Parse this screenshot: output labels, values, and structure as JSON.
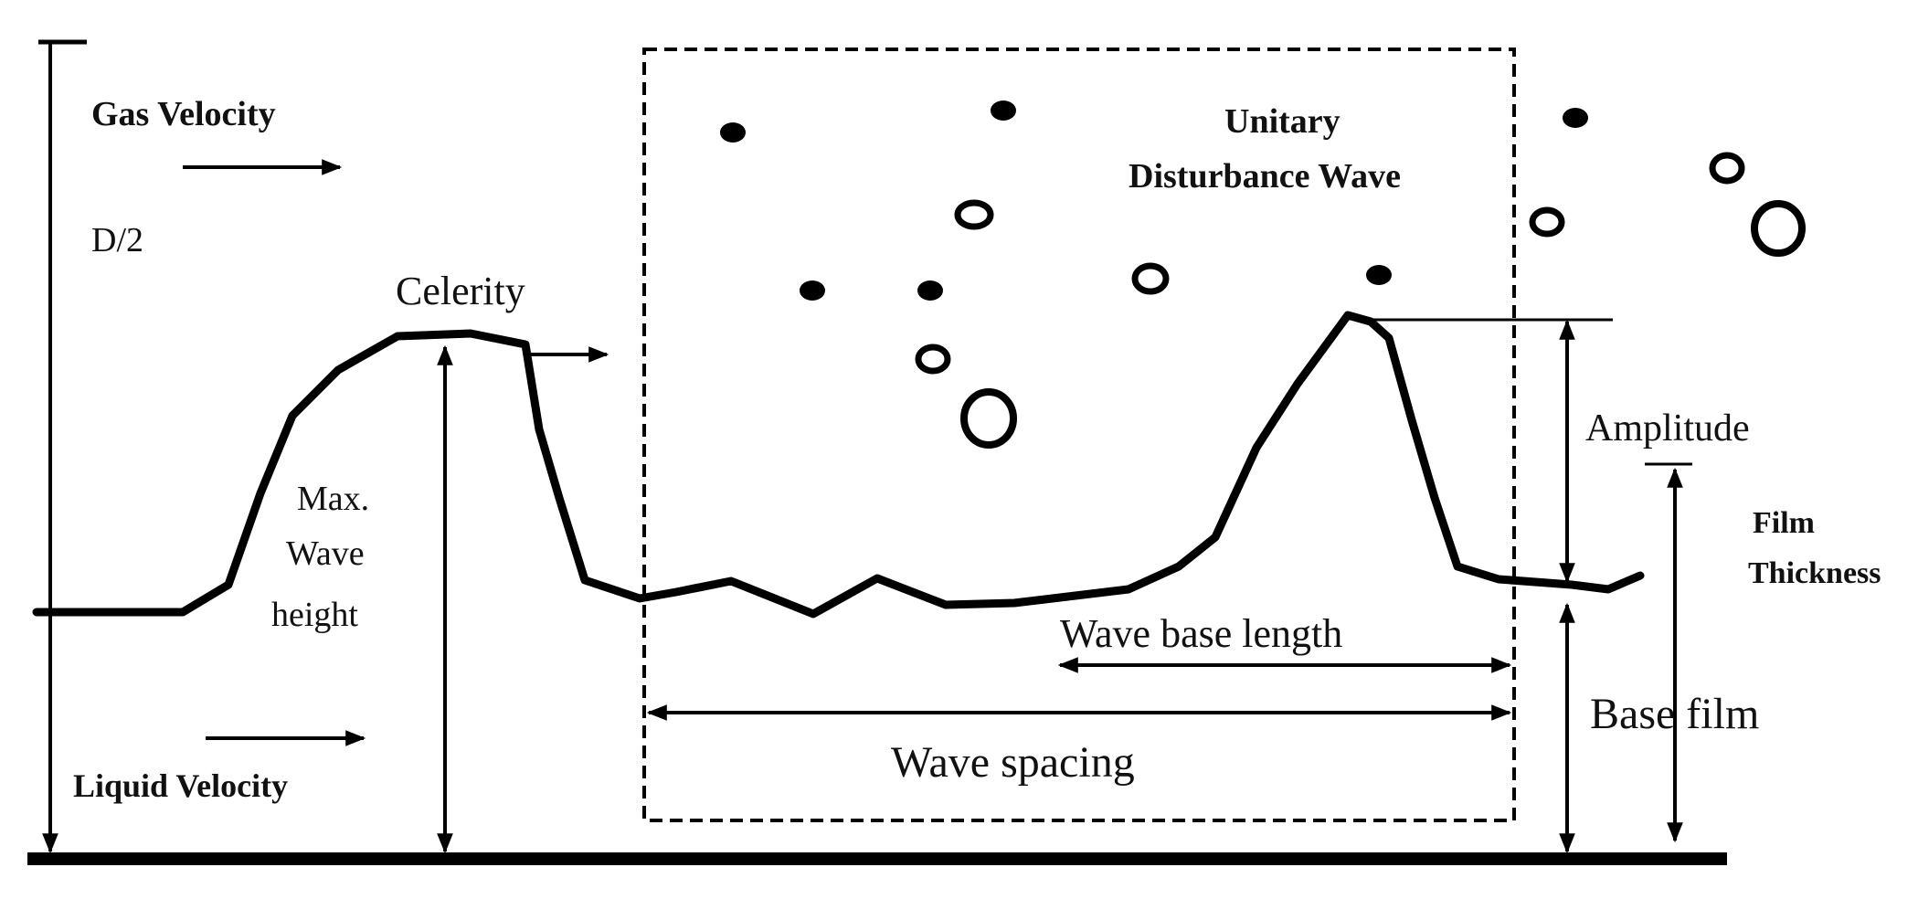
{
  "labels": {
    "gas_velocity": "Gas Velocity",
    "d_half": "D/2",
    "celerity": "Celerity",
    "max_wave": "Max.",
    "max_wave_2": "Wave",
    "max_wave_3": "height",
    "liquid_velocity": "Liquid Velocity",
    "unitary_1": "Unitary",
    "unitary_2": "Disturbance Wave",
    "amplitude": "Amplitude",
    "film_1": "Film",
    "film_2": "Thickness",
    "wave_base_length": "Wave base length",
    "base_film": "Base film",
    "wave_spacing": "Wave spacing"
  },
  "colors": {
    "ink": "#000000",
    "background": "#ffffff"
  }
}
